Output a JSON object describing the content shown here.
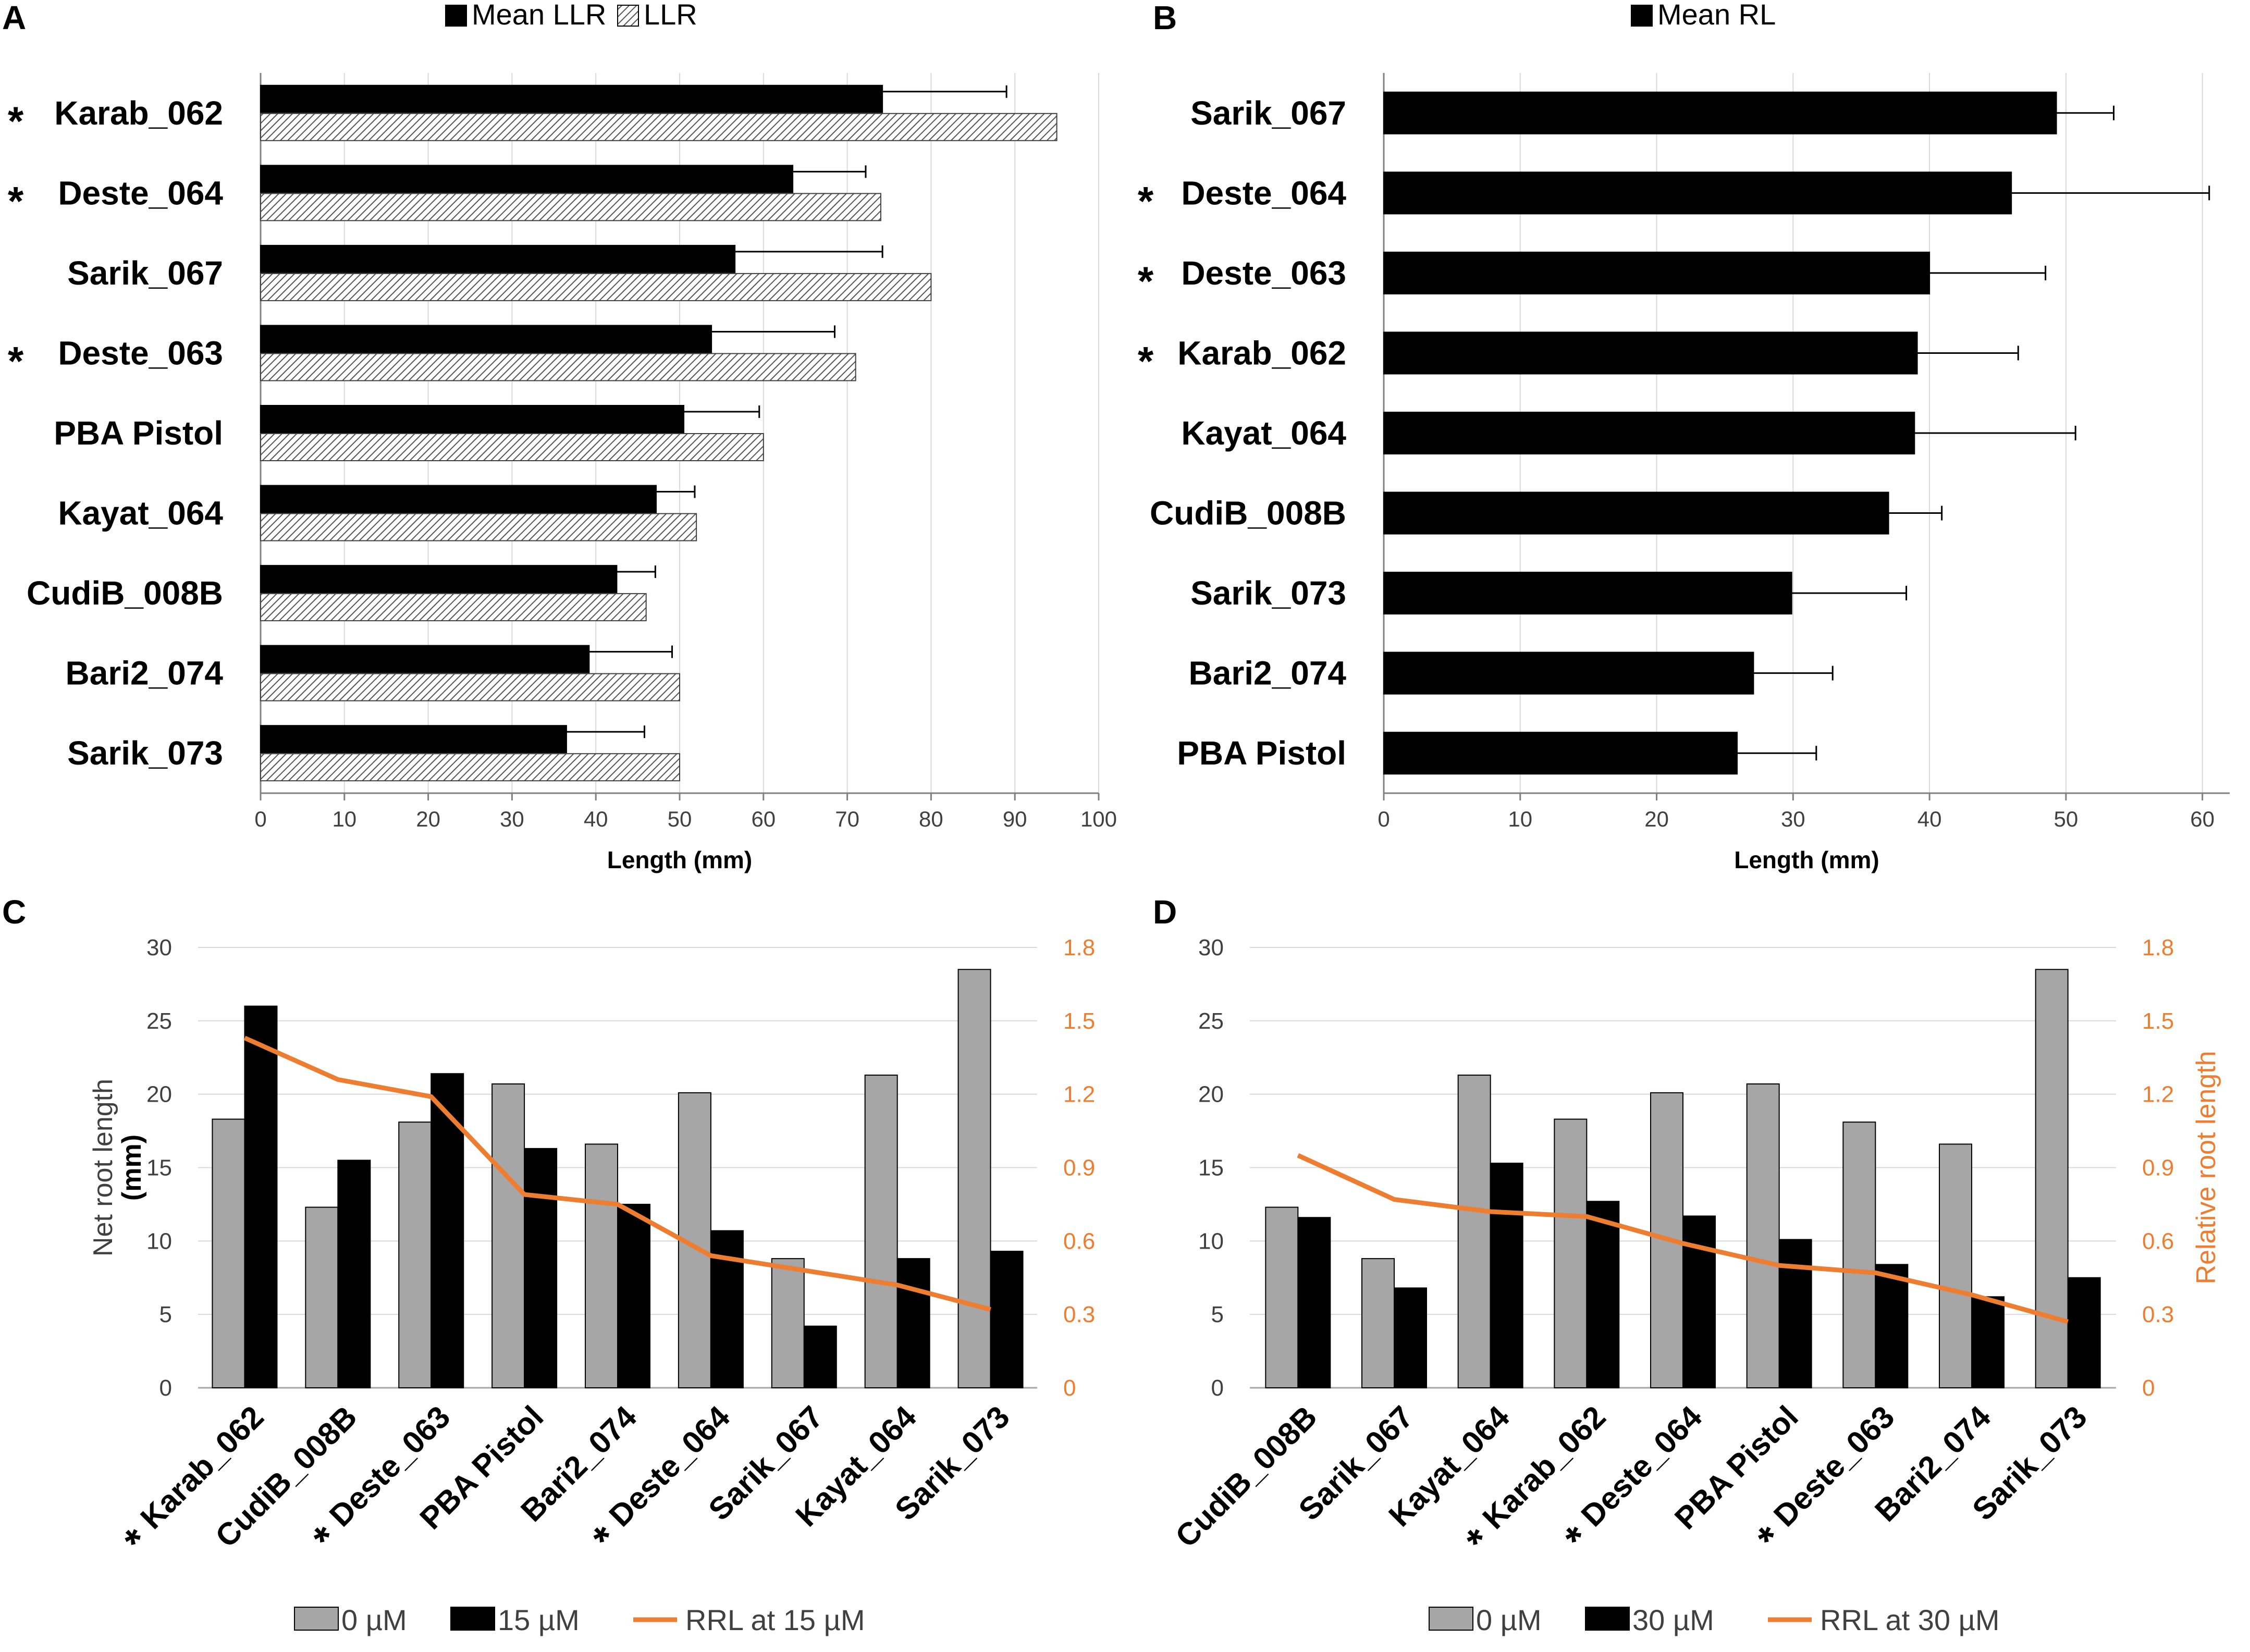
{
  "panels": {
    "a": "A",
    "b": "B",
    "c": "C",
    "d": "D"
  },
  "chart_data": [
    {
      "panel": "A",
      "type": "bar",
      "orientation": "horizontal",
      "categories": [
        "Karab_062",
        "Deste_064",
        "Sarik_067",
        "Deste_063",
        "PBA Pistol",
        "Kayat_064",
        "CudiB_008B",
        "Bari2_074",
        "Sarik_073"
      ],
      "starred": [
        true,
        true,
        false,
        true,
        false,
        false,
        false,
        false,
        false
      ],
      "series": [
        {
          "name": "Mean LLR",
          "values": [
            74.2,
            63.5,
            56.6,
            53.8,
            50.5,
            47.2,
            42.5,
            39.2,
            36.5
          ],
          "error": [
            14.8,
            8.7,
            17.6,
            14.7,
            9.0,
            4.6,
            4.6,
            9.9,
            9.3
          ],
          "color": "#000000"
        },
        {
          "name": "LLR",
          "values": [
            95,
            74,
            80,
            71,
            60,
            52,
            46,
            50,
            50
          ],
          "color": "#d9d9d9",
          "pattern": "hatch"
        }
      ],
      "xlabel": "Length (mm)",
      "xlim": [
        0,
        100
      ],
      "xticks": [
        0,
        10,
        20,
        30,
        40,
        50,
        60,
        70,
        80,
        90,
        100
      ]
    },
    {
      "panel": "B",
      "type": "bar",
      "orientation": "horizontal",
      "categories": [
        "Sarik_067",
        "Deste_064",
        "Deste_063",
        "Karab_062",
        "Kayat_064",
        "CudiB_008B",
        "Sarik_073",
        "Bari2_074",
        "PBA Pistol"
      ],
      "starred": [
        false,
        true,
        true,
        true,
        false,
        false,
        false,
        false,
        false
      ],
      "series": [
        {
          "name": "Mean RL",
          "values": [
            49.3,
            46.0,
            40.0,
            39.1,
            38.9,
            37.0,
            29.9,
            27.1,
            25.9
          ],
          "error": [
            4.2,
            14.5,
            8.5,
            7.4,
            11.8,
            3.9,
            8.4,
            5.8,
            5.8
          ],
          "color": "#000000"
        }
      ],
      "xlabel": "Length (mm)",
      "xlim": [
        0,
        62
      ],
      "xticks": [
        0,
        10,
        20,
        30,
        40,
        50,
        60
      ]
    },
    {
      "panel": "C",
      "type": "bar",
      "categories": [
        "Karab_062",
        "CudiB_008B",
        "Deste_063",
        "PBA Pistol",
        "Bari2_074",
        "Deste_064",
        "Sarik_067",
        "Kayat_064",
        "Sarik_073"
      ],
      "starred": [
        true,
        false,
        true,
        false,
        false,
        true,
        false,
        false,
        false
      ],
      "series": [
        {
          "name": "0 µM",
          "values": [
            18.3,
            12.3,
            18.1,
            20.7,
            16.6,
            20.1,
            8.8,
            21.3,
            28.5
          ],
          "color": "#a6a6a6"
        },
        {
          "name": "15 µM",
          "values": [
            26.0,
            15.5,
            21.4,
            16.3,
            12.5,
            10.7,
            4.2,
            8.8,
            9.3
          ],
          "color": "#000000"
        },
        {
          "name": "RRL at 15 µM",
          "type": "line",
          "axis": "right",
          "values": [
            1.43,
            1.26,
            1.19,
            0.79,
            0.75,
            0.54,
            0.48,
            0.42,
            0.32
          ],
          "color": "#ED7D31"
        }
      ],
      "ylabel": "Net root length",
      "ylabel_unit": "(mm)",
      "ylim": [
        0,
        30
      ],
      "yticks": [
        0,
        5,
        10,
        15,
        20,
        25,
        30
      ],
      "y2lim": [
        0,
        1.8
      ],
      "y2ticks": [
        "0",
        "0.3",
        "0.6",
        "0.9",
        "1.2",
        "1.5",
        "1.8"
      ]
    },
    {
      "panel": "D",
      "type": "bar",
      "categories": [
        "CudiB_008B",
        "Sarik_067",
        "Kayat_064",
        "Karab_062",
        "Deste_064",
        "PBA Pistol",
        "Deste_063",
        "Bari2_074",
        "Sarik_073"
      ],
      "starred": [
        false,
        false,
        false,
        true,
        true,
        false,
        true,
        false,
        false
      ],
      "series": [
        {
          "name": "0 µM",
          "values": [
            12.3,
            8.8,
            21.3,
            18.3,
            20.1,
            20.7,
            18.1,
            16.6,
            28.5
          ],
          "color": "#a6a6a6"
        },
        {
          "name": "30 µM",
          "values": [
            11.6,
            6.8,
            15.3,
            12.7,
            11.7,
            10.1,
            8.4,
            6.2,
            7.5
          ],
          "color": "#000000"
        },
        {
          "name": "RRL at 30 µM",
          "type": "line",
          "axis": "right",
          "values": [
            0.95,
            0.77,
            0.72,
            0.7,
            0.59,
            0.5,
            0.47,
            0.38,
            0.27
          ],
          "color": "#ED7D31"
        }
      ],
      "ylim": [
        0,
        30
      ],
      "yticks": [
        0,
        5,
        10,
        15,
        20,
        25,
        30
      ],
      "y2label": "Relative root length",
      "y2lim": [
        0,
        1.8
      ],
      "y2ticks": [
        "0",
        "0.3",
        "0.6",
        "0.9",
        "1.2",
        "1.5",
        "1.8"
      ]
    }
  ]
}
